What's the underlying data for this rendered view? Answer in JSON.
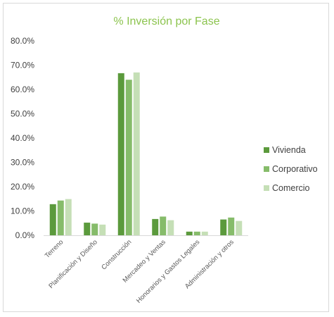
{
  "chart_data": {
    "type": "bar",
    "title": "% Inversión por Fase",
    "categories": [
      "Terreno",
      "Planificación y Diseño",
      "Construcción",
      "Mercadeo y Ventas",
      "Honorarios y Gastos Legales",
      "Administración y otros"
    ],
    "series": [
      {
        "name": "Vivienda",
        "color": "#5b9a3c",
        "values": [
          12.8,
          5.2,
          66.7,
          6.7,
          1.5,
          6.5
        ]
      },
      {
        "name": "Corporativo",
        "color": "#86bc6a",
        "values": [
          14.3,
          4.8,
          64.0,
          7.7,
          1.5,
          7.3
        ]
      },
      {
        "name": "Comercio",
        "color": "#c5dfb6",
        "values": [
          14.9,
          4.4,
          67.0,
          6.2,
          1.5,
          5.9
        ]
      }
    ],
    "y_ticks": [
      "0.0%",
      "10.0%",
      "20.0%",
      "30.0%",
      "40.0%",
      "50.0%",
      "60.0%",
      "70.0%",
      "80.0%"
    ],
    "ylim": [
      0,
      80
    ],
    "grid": false,
    "legend_position": "right",
    "title_color": "#8cc44e"
  }
}
